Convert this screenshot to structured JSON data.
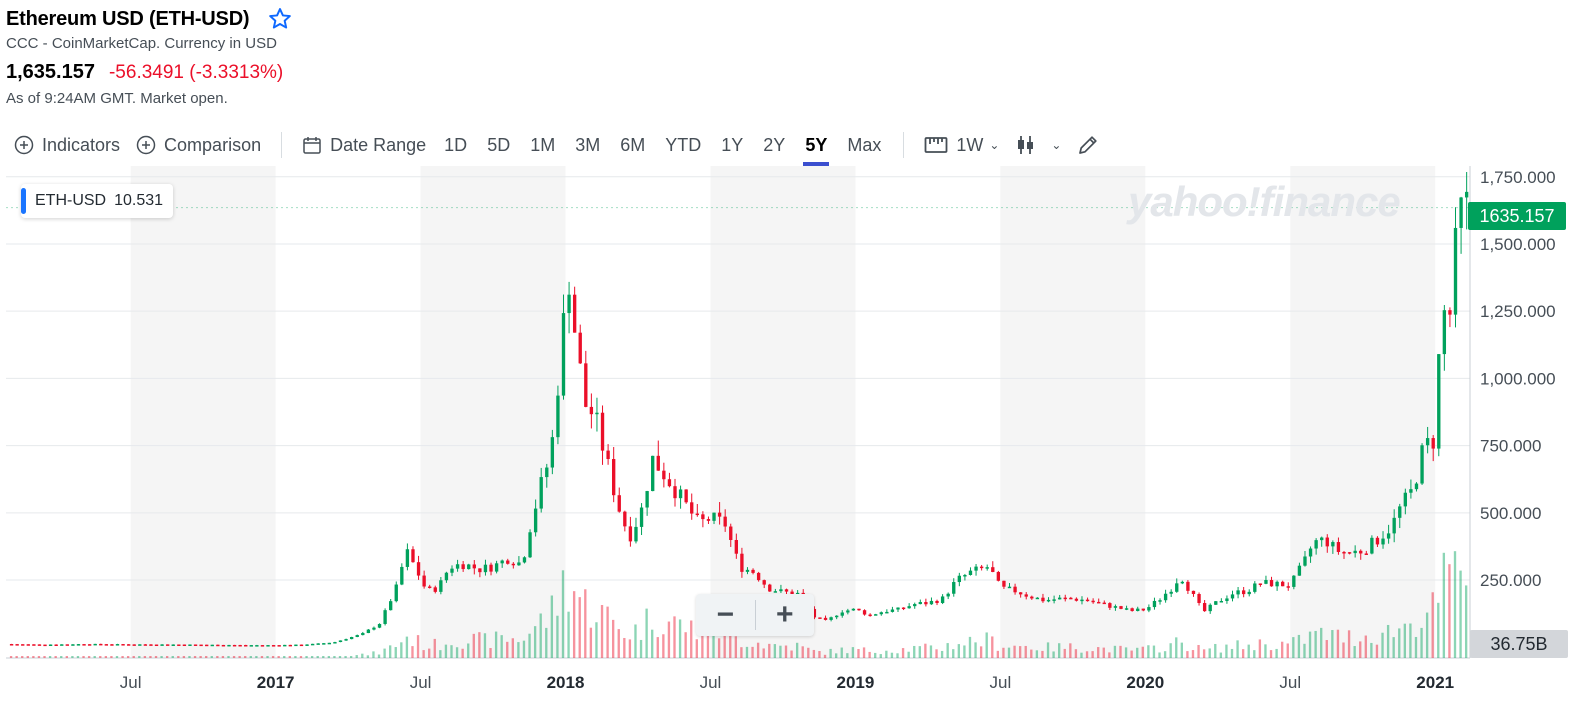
{
  "header": {
    "title": "Ethereum USD (ETH-USD)",
    "subtitle": "CCC - CoinMarketCap. Currency in USD",
    "price": "1,635.157",
    "change": "-56.3491 (-3.3313%)",
    "as_of": "As of 9:24AM GMT. Market open."
  },
  "toolbar": {
    "indicators": "Indicators",
    "comparison": "Comparison",
    "date_range": "Date Range",
    "ranges": [
      "1D",
      "5D",
      "1M",
      "3M",
      "6M",
      "YTD",
      "1Y",
      "2Y",
      "5Y",
      "Max"
    ],
    "active_range": "5Y",
    "interval": "1W"
  },
  "legend": {
    "symbol": "ETH-USD",
    "value": "10.531"
  },
  "watermark": "yahoo!finance",
  "price_tag": "1635.157",
  "volume_tag": "36.75B",
  "zoom": {
    "minus": "−",
    "plus": "+"
  },
  "colors": {
    "up": "#00a15c",
    "down": "#eb0f29",
    "accent": "#3b4fcf",
    "star": "#0f69ff"
  },
  "chart_data": {
    "type": "candlestick",
    "interval": "1W",
    "y_ticks": [
      "1,750.000",
      "1,500.000",
      "1,250.000",
      "1,000.000",
      "750.000",
      "500.000",
      "250.000"
    ],
    "y_tick_values": [
      1750,
      1500,
      1250,
      1000,
      750,
      500,
      250
    ],
    "x_ticks": [
      "Jul",
      "2017",
      "Jul",
      "2018",
      "Jul",
      "2019",
      "Jul",
      "2020",
      "Jul",
      "2021"
    ],
    "x_tick_years": [
      2016.5,
      2017.0,
      2017.5,
      2018.0,
      2018.5,
      2019.0,
      2019.5,
      2020.0,
      2020.5,
      2021.0
    ],
    "x_range": [
      2016.07,
      2021.12
    ],
    "y_range": [
      -40,
      1790
    ],
    "close_series": [
      [
        2016.07,
        12
      ],
      [
        2016.2,
        10
      ],
      [
        2016.35,
        12
      ],
      [
        2016.5,
        11
      ],
      [
        2016.7,
        10
      ],
      [
        2016.9,
        8
      ],
      [
        2017.0,
        8
      ],
      [
        2017.1,
        10
      ],
      [
        2017.2,
        18
      ],
      [
        2017.3,
        50
      ],
      [
        2017.36,
        90
      ],
      [
        2017.42,
        230
      ],
      [
        2017.45,
        360
      ],
      [
        2017.48,
        300
      ],
      [
        2017.52,
        210
      ],
      [
        2017.56,
        220
      ],
      [
        2017.6,
        300
      ],
      [
        2017.65,
        310
      ],
      [
        2017.7,
        290
      ],
      [
        2017.75,
        300
      ],
      [
        2017.8,
        330
      ],
      [
        2017.85,
        310
      ],
      [
        2017.88,
        460
      ],
      [
        2017.92,
        620
      ],
      [
        2017.95,
        720
      ],
      [
        2017.98,
        1050
      ],
      [
        2018.01,
        1400
      ],
      [
        2018.04,
        1100
      ],
      [
        2018.07,
        900
      ],
      [
        2018.1,
        860
      ],
      [
        2018.14,
        700
      ],
      [
        2018.18,
        530
      ],
      [
        2018.22,
        410
      ],
      [
        2018.26,
        500
      ],
      [
        2018.3,
        700
      ],
      [
        2018.33,
        660
      ],
      [
        2018.37,
        600
      ],
      [
        2018.42,
        520
      ],
      [
        2018.46,
        460
      ],
      [
        2018.5,
        480
      ],
      [
        2018.55,
        460
      ],
      [
        2018.6,
        300
      ],
      [
        2018.65,
        280
      ],
      [
        2018.7,
        220
      ],
      [
        2018.75,
        205
      ],
      [
        2018.8,
        200
      ],
      [
        2018.86,
        110
      ],
      [
        2018.9,
        95
      ],
      [
        2018.95,
        135
      ],
      [
        2019.0,
        140
      ],
      [
        2019.05,
        120
      ],
      [
        2019.1,
        135
      ],
      [
        2019.15,
        140
      ],
      [
        2019.2,
        160
      ],
      [
        2019.25,
        165
      ],
      [
        2019.3,
        180
      ],
      [
        2019.35,
        250
      ],
      [
        2019.4,
        280
      ],
      [
        2019.46,
        300
      ],
      [
        2019.5,
        220
      ],
      [
        2019.55,
        210
      ],
      [
        2019.6,
        190
      ],
      [
        2019.65,
        175
      ],
      [
        2019.7,
        180
      ],
      [
        2019.75,
        180
      ],
      [
        2019.8,
        175
      ],
      [
        2019.85,
        160
      ],
      [
        2019.9,
        148
      ],
      [
        2019.95,
        135
      ],
      [
        2020.0,
        140
      ],
      [
        2020.05,
        180
      ],
      [
        2020.1,
        230
      ],
      [
        2020.12,
        270
      ],
      [
        2020.16,
        200
      ],
      [
        2020.2,
        130
      ],
      [
        2020.25,
        170
      ],
      [
        2020.3,
        200
      ],
      [
        2020.35,
        210
      ],
      [
        2020.4,
        240
      ],
      [
        2020.45,
        235
      ],
      [
        2020.5,
        230
      ],
      [
        2020.55,
        320
      ],
      [
        2020.58,
        390
      ],
      [
        2020.62,
        400
      ],
      [
        2020.66,
        360
      ],
      [
        2020.7,
        350
      ],
      [
        2020.75,
        360
      ],
      [
        2020.8,
        400
      ],
      [
        2020.85,
        450
      ],
      [
        2020.88,
        520
      ],
      [
        2020.92,
        580
      ],
      [
        2020.96,
        740
      ],
      [
        2021.0,
        780
      ],
      [
        2021.02,
        1250
      ],
      [
        2021.05,
        1230
      ],
      [
        2021.08,
        1600
      ],
      [
        2021.1,
        1635
      ]
    ],
    "last_price": 1635.157,
    "last_volume": "36.75B"
  }
}
